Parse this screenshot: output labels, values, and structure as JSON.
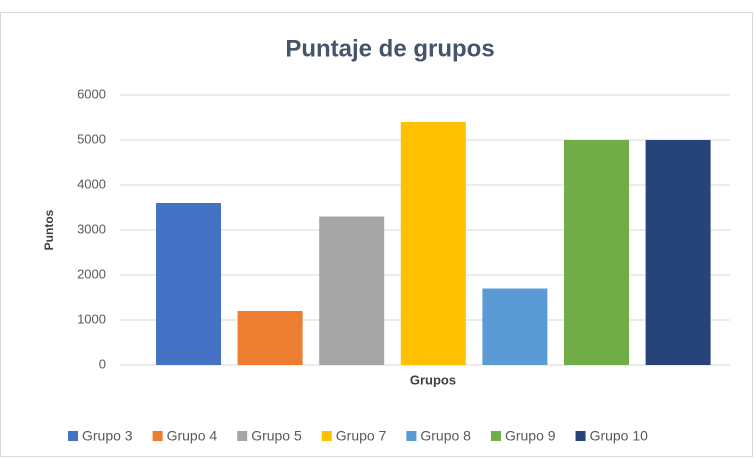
{
  "chart_data": {
    "type": "bar",
    "title": "Puntaje de grupos",
    "x_label": "Grupos",
    "y_label": "Puntos",
    "categories": [
      null
    ],
    "series": [
      {
        "name": "Grupo 3",
        "color": "#4472c4",
        "values": [
          3600
        ]
      },
      {
        "name": "Grupo 4",
        "color": "#ed7d31",
        "values": [
          1200
        ]
      },
      {
        "name": "Grupo 5",
        "color": "#a5a5a5",
        "values": [
          3300
        ]
      },
      {
        "name": "Grupo 7",
        "color": "#ffc000",
        "values": [
          5400
        ]
      },
      {
        "name": "Grupo 8",
        "color": "#5b9bd5",
        "values": [
          1700
        ]
      },
      {
        "name": "Grupo 9",
        "color": "#70ad47",
        "values": [
          5000
        ]
      },
      {
        "name": "Grupo 10",
        "color": "#264478",
        "values": [
          5000
        ]
      }
    ],
    "ylim": [
      0,
      6000
    ],
    "yticks": [
      0,
      1000,
      2000,
      3000,
      4000,
      5000,
      6000
    ],
    "grid": true,
    "legend": "bottom"
  }
}
